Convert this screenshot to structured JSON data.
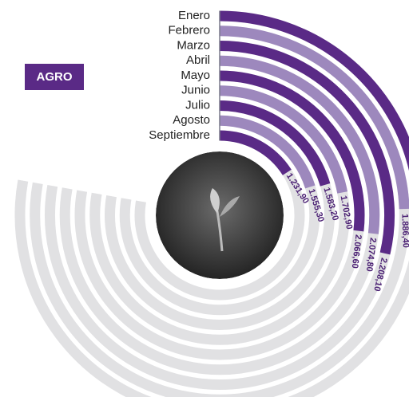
{
  "chart_data": {
    "type": "radial_bar",
    "title": "AGRO",
    "categories": [
      "Enero",
      "Febrero",
      "Marzo",
      "Abril",
      "Mayo",
      "Junio",
      "Julio",
      "Agosto",
      "Septiembre"
    ],
    "values": [
      1650,
      1886.4,
      2208.1,
      2074.8,
      2066.6,
      1702.9,
      1583.2,
      1555.3,
      1231.9
    ],
    "value_labels": [
      null,
      "1.886,40",
      "2.208,10",
      "2.074,80",
      "2.066,60",
      "1.702,90",
      "1.583,20",
      "1.555,30",
      "1.231,90"
    ],
    "colors": [
      "#5a2a86",
      "#9d88bd"
    ],
    "track_color": "#e1e1e3",
    "ylim": [
      0,
      6000
    ]
  }
}
